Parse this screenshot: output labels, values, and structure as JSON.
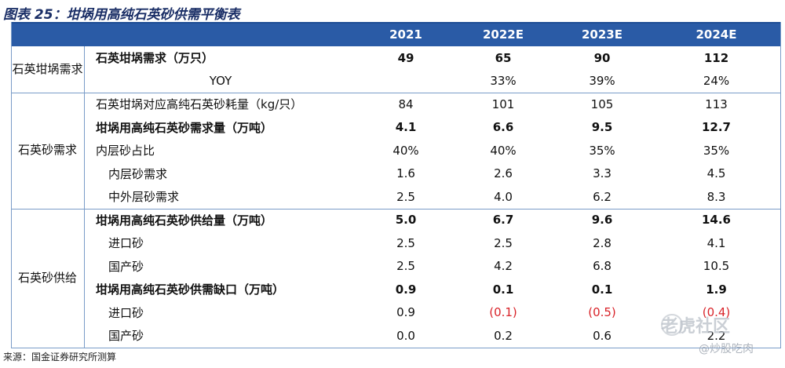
{
  "title": "图表 25：坩埚用高纯石英砂供需平衡表",
  "source": "来源：国金证券研究所测算",
  "watermark": {
    "line1": "老虎社区",
    "line2": "@炒股吃肉"
  },
  "table": {
    "columns": [
      "2021",
      "2022E",
      "2023E",
      "2024E"
    ],
    "groups": [
      {
        "label": "石英坩埚\n需求",
        "rows": [
          {
            "label": "石英坩埚需求（万只）",
            "style": "bold",
            "values": [
              "49",
              "65",
              "90",
              "112"
            ]
          },
          {
            "label": "YOY",
            "style": "center",
            "values": [
              "",
              "33%",
              "39%",
              "24%"
            ]
          }
        ]
      },
      {
        "label": "石英砂需\n求",
        "rows": [
          {
            "label": "石英坩埚对应高纯石英砂耗量（kg/只）",
            "style": "normal",
            "values": [
              "84",
              "101",
              "105",
              "113"
            ]
          },
          {
            "label": "坩埚用高纯石英砂需求量（万吨）",
            "style": "bold",
            "values": [
              "4.1",
              "6.6",
              "9.5",
              "12.7"
            ]
          },
          {
            "label": "内层砂占比",
            "style": "normal",
            "values": [
              "40%",
              "40%",
              "35%",
              "35%"
            ]
          },
          {
            "label": "内层砂需求",
            "style": "indent",
            "values": [
              "1.6",
              "2.6",
              "3.3",
              "4.5"
            ]
          },
          {
            "label": "中外层砂需求",
            "style": "indent",
            "values": [
              "2.5",
              "4.0",
              "6.2",
              "8.3"
            ]
          }
        ]
      },
      {
        "label": "石英砂供\n给",
        "rows": [
          {
            "label": "坩埚用高纯石英砂供给量（万吨）",
            "style": "bold",
            "values": [
              "5.0",
              "6.7",
              "9.6",
              "14.6"
            ]
          },
          {
            "label": "进口砂",
            "style": "indent",
            "values": [
              "2.5",
              "2.5",
              "2.8",
              "4.1"
            ]
          },
          {
            "label": "国产砂",
            "style": "indent",
            "values": [
              "2.5",
              "4.2",
              "6.8",
              "10.5"
            ]
          },
          {
            "label": "坩埚用高纯石英砂供需缺口（万吨）",
            "style": "bold",
            "values": [
              "0.9",
              "0.1",
              "0.1",
              "1.9"
            ]
          },
          {
            "label": "进口砂",
            "style": "indent",
            "values": [
              "0.9",
              "(0.1)",
              "(0.5)",
              "(0.4)"
            ],
            "red": [
              false,
              true,
              true,
              true
            ]
          },
          {
            "label": "国产砂",
            "style": "indent",
            "values": [
              "0.0",
              "0.2",
              "0.6",
              "2.2"
            ]
          }
        ]
      }
    ]
  }
}
